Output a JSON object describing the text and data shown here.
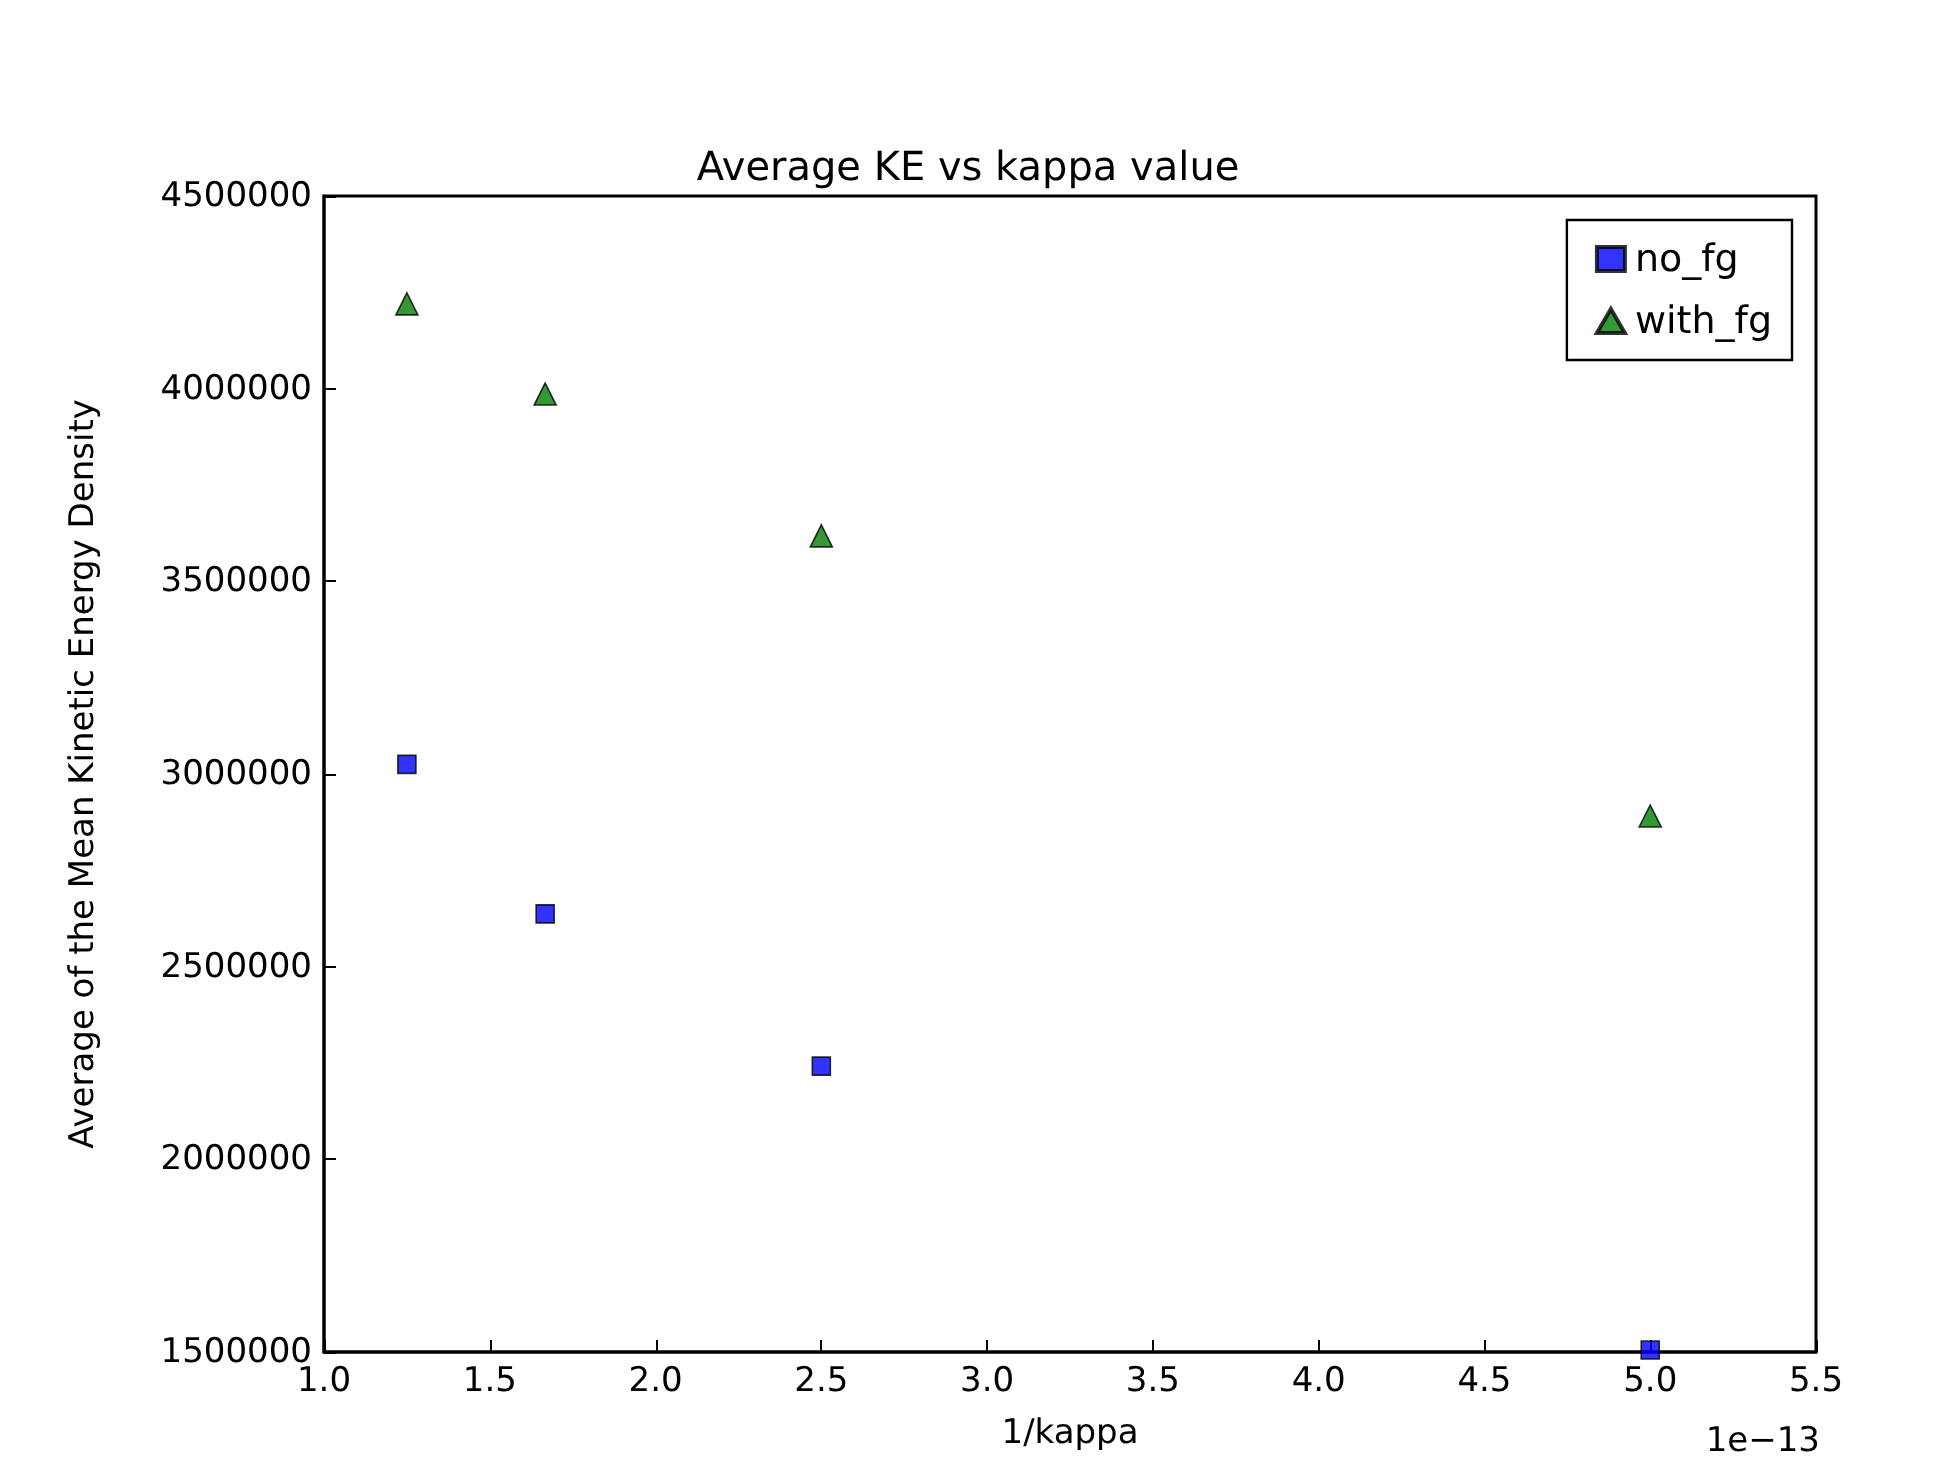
{
  "chart_data": {
    "type": "scatter",
    "title": "Average KE vs kappa value",
    "xlabel": "1/kappa",
    "ylabel": "Average of the Mean Kinetic Energy Density",
    "annotations": [
      "1e−13"
    ],
    "x": [
      1.25,
      1.667,
      2.5,
      5
    ],
    "series": [
      {
        "name": "no_fg",
        "color": "#0000ff",
        "marker": "square",
        "values": [
          3025000,
          2637000,
          2242000,
          1505000
        ]
      },
      {
        "name": "with_fg",
        "color": "#007f00",
        "marker": "triangle",
        "values": [
          4220000,
          3986000,
          3618000,
          2891000
        ]
      }
    ],
    "xlim": [
      1,
      5.5
    ],
    "xticks": [
      {
        "value": 1,
        "label": "1.0"
      },
      1.5,
      {
        "value": 2,
        "label": "2.0"
      },
      2.5,
      {
        "value": 3,
        "label": "3.0"
      },
      3.5,
      {
        "value": 4,
        "label": "4.0"
      },
      4.5,
      {
        "value": 5,
        "label": "5.0"
      },
      5.5
    ],
    "ylim": [
      1500000,
      4500000
    ],
    "yticks": [
      1500000,
      2000000,
      2500000,
      3000000,
      3500000,
      4000000,
      4500000
    ],
    "grid": false,
    "legend": "top right"
  }
}
